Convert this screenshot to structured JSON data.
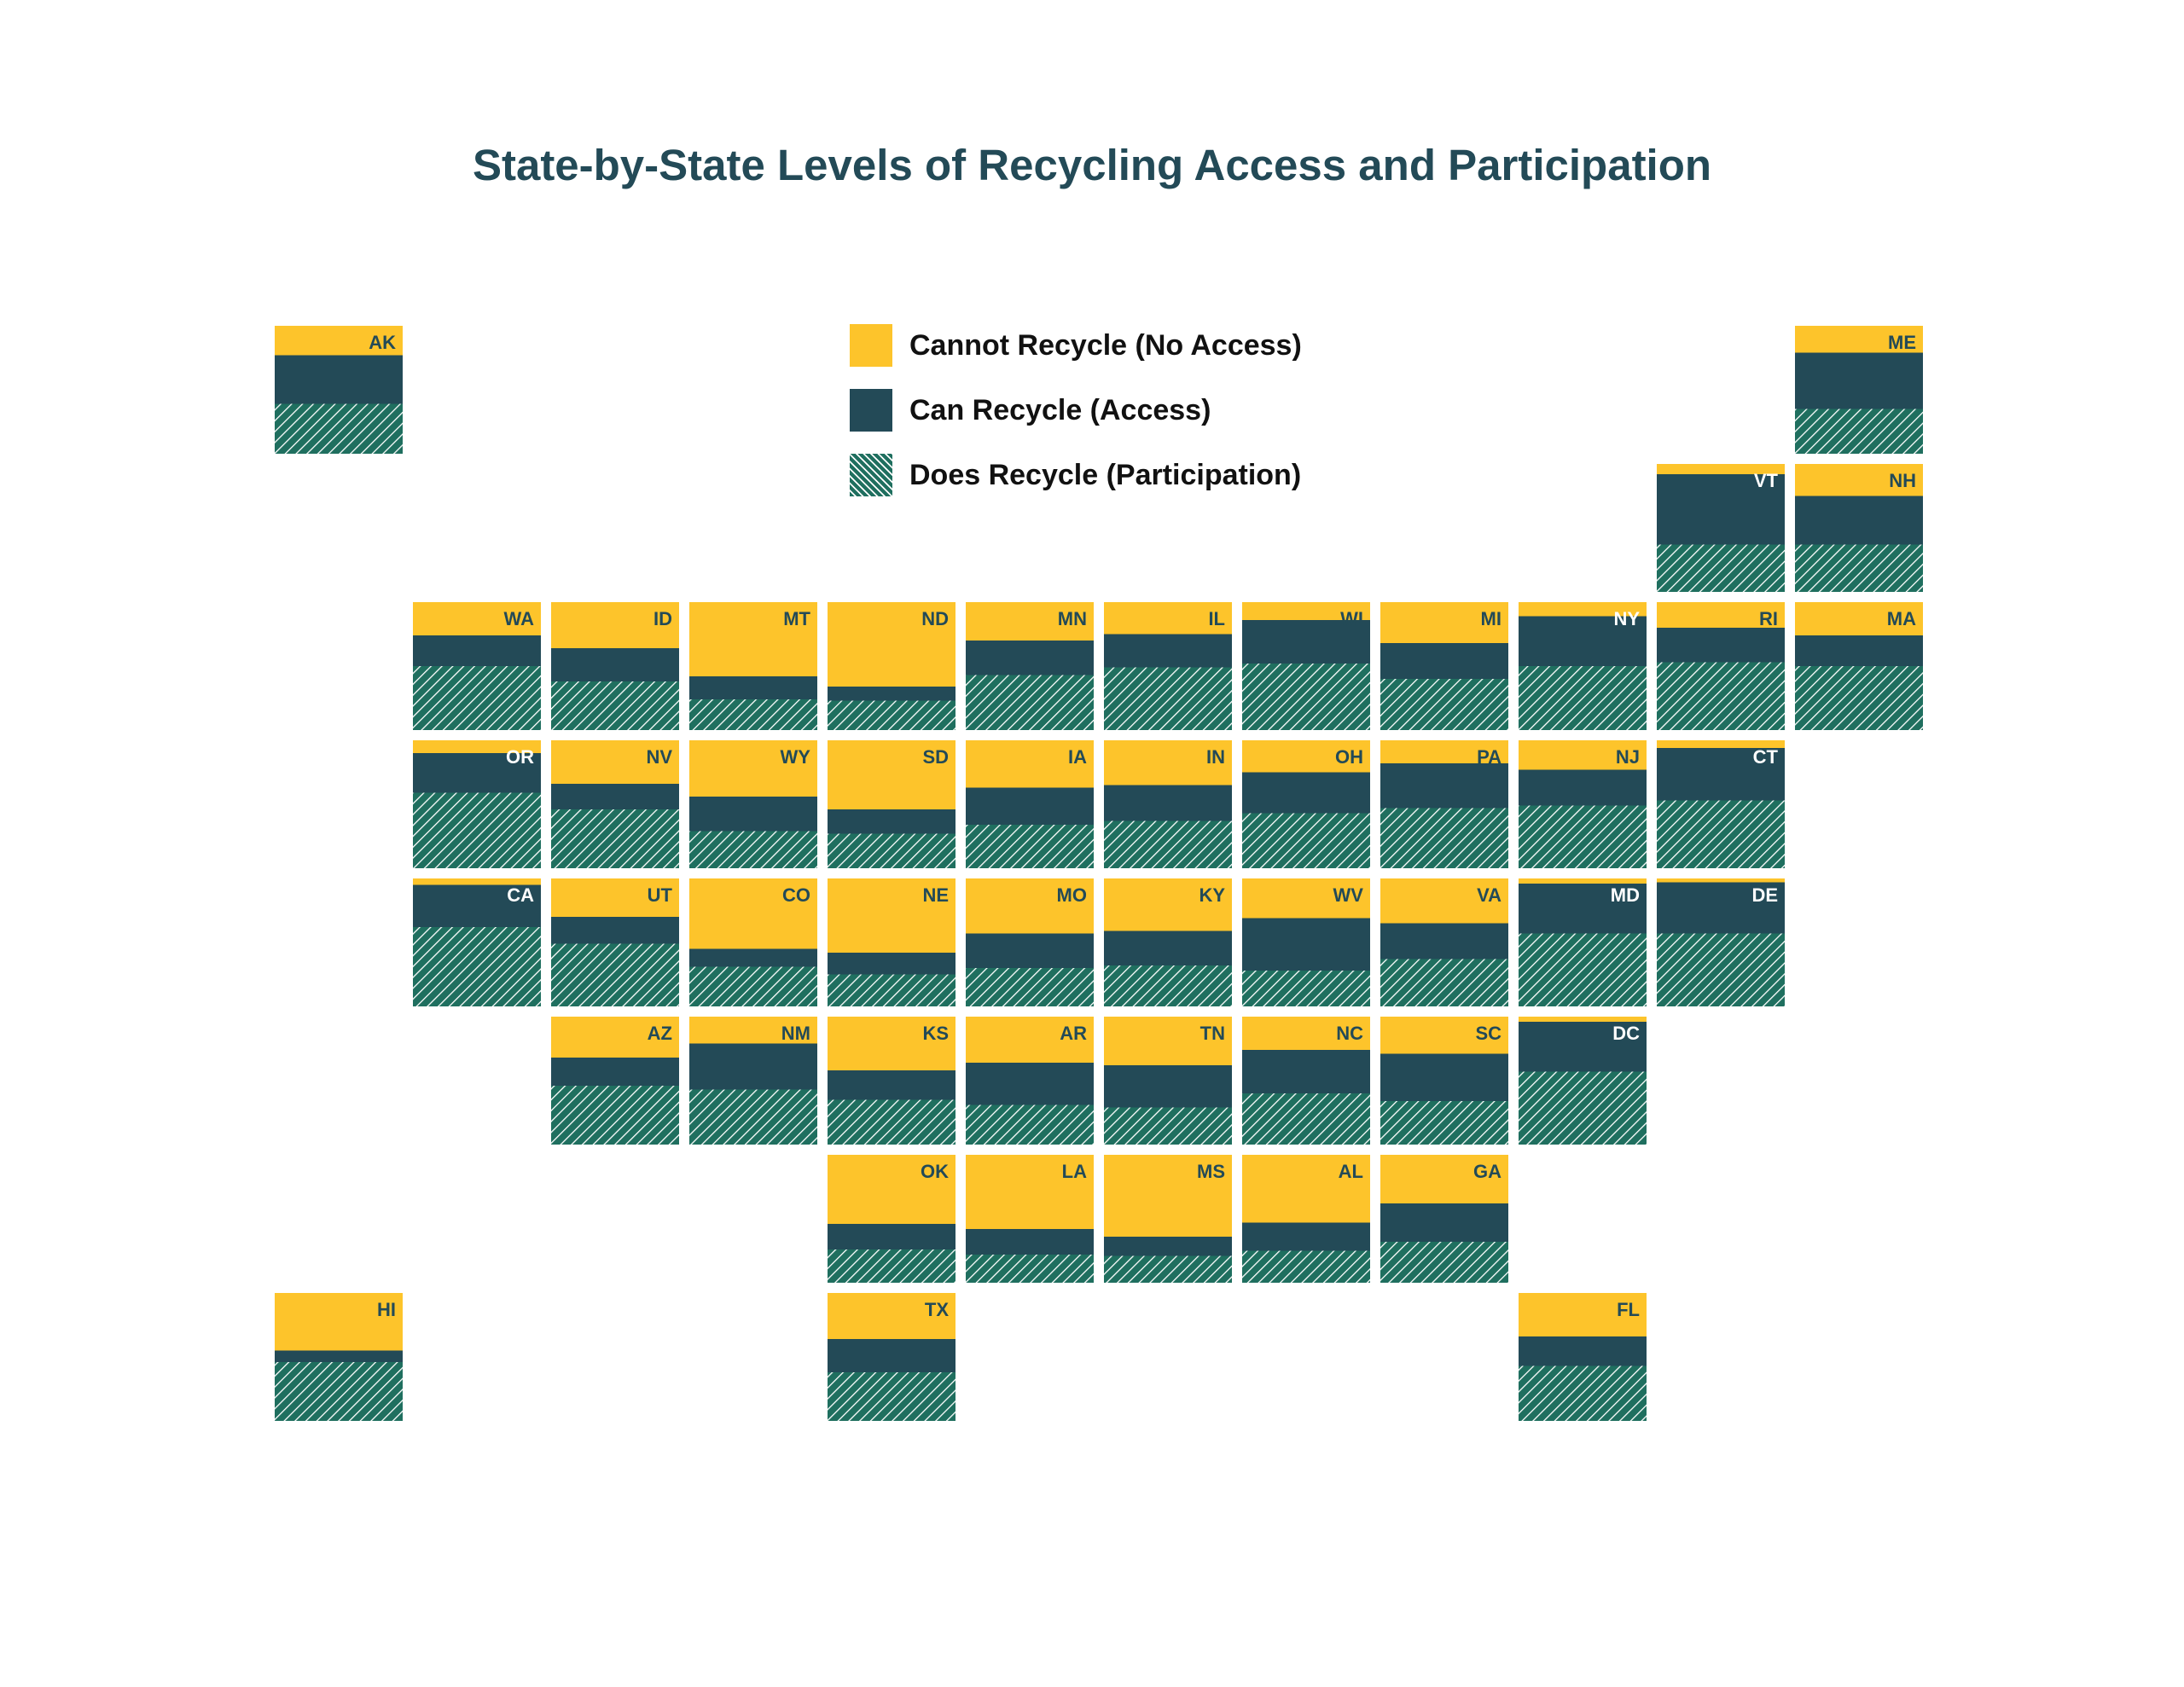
{
  "title": "State-by-State Levels of Recycling Access and Participation",
  "colors": {
    "no_access": "#fdc42b",
    "access": "#234a57",
    "participation_bg": "#1f6f5f",
    "participation_stripe": "#ffffff"
  },
  "legend": [
    {
      "label": "Cannot Recycle (No Access)",
      "key": "no_access"
    },
    {
      "label": "Can Recycle (Access)",
      "key": "access"
    },
    {
      "label": "Does Recycle (Participation)",
      "key": "participation"
    }
  ],
  "chart_data": {
    "type": "tile-map stacked bar",
    "title": "State-by-State Levels of Recycling Access and Participation",
    "series": [
      {
        "name": "Cannot Recycle (No Access)"
      },
      {
        "name": "Can Recycle (Access)"
      },
      {
        "name": "Does Recycle (Participation)"
      }
    ],
    "unit": "percent of population",
    "states": [
      {
        "code": "AK",
        "col": 0,
        "row": 0,
        "access": 77,
        "participation": 39
      },
      {
        "code": "ME",
        "col": 11,
        "row": 0,
        "access": 79,
        "participation": 35
      },
      {
        "code": "VT",
        "col": 10,
        "row": 1,
        "access": 92,
        "participation": 37
      },
      {
        "code": "NH",
        "col": 11,
        "row": 1,
        "access": 75,
        "participation": 37
      },
      {
        "code": "WA",
        "col": 1,
        "row": 2,
        "access": 74,
        "participation": 50
      },
      {
        "code": "ID",
        "col": 2,
        "row": 2,
        "access": 64,
        "participation": 38
      },
      {
        "code": "MT",
        "col": 3,
        "row": 2,
        "access": 42,
        "participation": 24
      },
      {
        "code": "ND",
        "col": 4,
        "row": 2,
        "access": 34,
        "participation": 23
      },
      {
        "code": "MN",
        "col": 5,
        "row": 2,
        "access": 70,
        "participation": 43
      },
      {
        "code": "IL",
        "col": 6,
        "row": 2,
        "access": 75,
        "participation": 49
      },
      {
        "code": "WI",
        "col": 7,
        "row": 2,
        "access": 86,
        "participation": 52
      },
      {
        "code": "MI",
        "col": 8,
        "row": 2,
        "access": 68,
        "participation": 40
      },
      {
        "code": "NY",
        "col": 9,
        "row": 2,
        "access": 89,
        "participation": 50
      },
      {
        "code": "RI",
        "col": 10,
        "row": 2,
        "access": 80,
        "participation": 53
      },
      {
        "code": "MA",
        "col": 11,
        "row": 2,
        "access": 74,
        "participation": 50
      },
      {
        "code": "OR",
        "col": 1,
        "row": 3,
        "access": 90,
        "participation": 59
      },
      {
        "code": "NV",
        "col": 2,
        "row": 3,
        "access": 66,
        "participation": 46
      },
      {
        "code": "WY",
        "col": 3,
        "row": 3,
        "access": 56,
        "participation": 29
      },
      {
        "code": "SD",
        "col": 4,
        "row": 3,
        "access": 46,
        "participation": 27
      },
      {
        "code": "IA",
        "col": 5,
        "row": 3,
        "access": 63,
        "participation": 34
      },
      {
        "code": "IN",
        "col": 6,
        "row": 3,
        "access": 65,
        "participation": 37
      },
      {
        "code": "OH",
        "col": 7,
        "row": 3,
        "access": 75,
        "participation": 43
      },
      {
        "code": "PA",
        "col": 8,
        "row": 3,
        "access": 82,
        "participation": 47
      },
      {
        "code": "NJ",
        "col": 9,
        "row": 3,
        "access": 77,
        "participation": 49
      },
      {
        "code": "CT",
        "col": 10,
        "row": 3,
        "access": 94,
        "participation": 53
      },
      {
        "code": "CA",
        "col": 1,
        "row": 4,
        "access": 95,
        "participation": 62
      },
      {
        "code": "UT",
        "col": 2,
        "row": 4,
        "access": 70,
        "participation": 49
      },
      {
        "code": "CO",
        "col": 3,
        "row": 4,
        "access": 45,
        "participation": 31
      },
      {
        "code": "NE",
        "col": 4,
        "row": 4,
        "access": 42,
        "participation": 25
      },
      {
        "code": "MO",
        "col": 5,
        "row": 4,
        "access": 57,
        "participation": 30
      },
      {
        "code": "KY",
        "col": 6,
        "row": 4,
        "access": 59,
        "participation": 32
      },
      {
        "code": "WV",
        "col": 7,
        "row": 4,
        "access": 69,
        "participation": 28
      },
      {
        "code": "VA",
        "col": 8,
        "row": 4,
        "access": 65,
        "participation": 37
      },
      {
        "code": "MD",
        "col": 9,
        "row": 4,
        "access": 96,
        "participation": 57
      },
      {
        "code": "DE",
        "col": 10,
        "row": 4,
        "access": 97,
        "participation": 57
      },
      {
        "code": "AZ",
        "col": 2,
        "row": 5,
        "access": 68,
        "participation": 46
      },
      {
        "code": "NM",
        "col": 3,
        "row": 5,
        "access": 79,
        "participation": 43
      },
      {
        "code": "KS",
        "col": 4,
        "row": 5,
        "access": 58,
        "participation": 35
      },
      {
        "code": "AR",
        "col": 5,
        "row": 5,
        "access": 64,
        "participation": 31
      },
      {
        "code": "TN",
        "col": 6,
        "row": 5,
        "access": 62,
        "participation": 29
      },
      {
        "code": "NC",
        "col": 7,
        "row": 5,
        "access": 74,
        "participation": 40
      },
      {
        "code": "SC",
        "col": 8,
        "row": 5,
        "access": 71,
        "participation": 34
      },
      {
        "code": "DC",
        "col": 9,
        "row": 5,
        "access": 96,
        "participation": 57
      },
      {
        "code": "OK",
        "col": 4,
        "row": 6,
        "access": 46,
        "participation": 26
      },
      {
        "code": "LA",
        "col": 5,
        "row": 6,
        "access": 42,
        "participation": 22
      },
      {
        "code": "MS",
        "col": 6,
        "row": 6,
        "access": 36,
        "participation": 21
      },
      {
        "code": "AL",
        "col": 7,
        "row": 6,
        "access": 47,
        "participation": 25
      },
      {
        "code": "GA",
        "col": 8,
        "row": 6,
        "access": 62,
        "participation": 32
      },
      {
        "code": "HI",
        "col": 0,
        "row": 7,
        "access": 55,
        "participation": 46
      },
      {
        "code": "TX",
        "col": 4,
        "row": 7,
        "access": 64,
        "participation": 38
      },
      {
        "code": "FL",
        "col": 9,
        "row": 7,
        "access": 66,
        "participation": 43
      }
    ],
    "light_label_states": [
      "OR",
      "CA",
      "MD",
      "DE",
      "DC",
      "CT",
      "NY",
      "VT"
    ]
  }
}
